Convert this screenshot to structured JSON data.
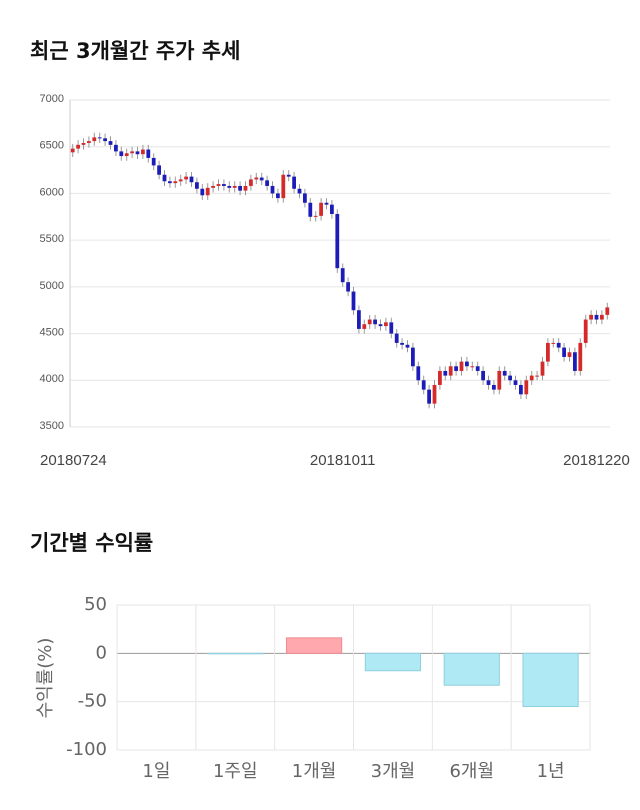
{
  "chart_data": [
    {
      "type": "candlestick",
      "title": "최근 3개월간 주가 추세",
      "up_color": "#d42a2a",
      "down_color": "#1c1cb8",
      "grid": true,
      "ylim": [
        3500,
        7000
      ],
      "yticks": [
        3500,
        4000,
        4500,
        5000,
        5500,
        6000,
        6500,
        7000
      ],
      "categories": [
        "20180724",
        null,
        null,
        null,
        null,
        null,
        null,
        null,
        null,
        null,
        null,
        null,
        null,
        null,
        null,
        null,
        null,
        null,
        null,
        null,
        null,
        null,
        null,
        null,
        null,
        null,
        null,
        null,
        null,
        null,
        null,
        null,
        null,
        null,
        null,
        null,
        null,
        null,
        null,
        null,
        null,
        null,
        null,
        null,
        null,
        null,
        null,
        null,
        null,
        null,
        "20181011",
        null,
        null,
        null,
        null,
        null,
        null,
        null,
        null,
        null,
        null,
        null,
        null,
        null,
        null,
        null,
        null,
        null,
        null,
        null,
        null,
        null,
        null,
        null,
        null,
        null,
        null,
        null,
        null,
        null,
        null,
        null,
        null,
        null,
        null,
        null,
        null,
        null,
        null,
        null,
        null,
        null,
        null,
        null,
        null,
        null,
        null,
        "20181220",
        null,
        null
      ],
      "open": [
        6440,
        6480,
        6520,
        6540,
        6560,
        6600,
        6590,
        6560,
        6520,
        6450,
        6400,
        6430,
        6450,
        6420,
        6470,
        6380,
        6300,
        6200,
        6130,
        6110,
        6130,
        6150,
        6180,
        6120,
        6050,
        5980,
        6060,
        6080,
        6100,
        6080,
        6060,
        6080,
        6030,
        6080,
        6150,
        6170,
        6140,
        6080,
        6000,
        5950,
        6200,
        6180,
        6050,
        6000,
        5900,
        5750,
        5760,
        5900,
        5880,
        5780,
        5200,
        5050,
        4950,
        4750,
        4550,
        4600,
        4650,
        4600,
        4580,
        4620,
        4500,
        4400,
        4380,
        4350,
        4150,
        4000,
        3900,
        3750,
        3950,
        4100,
        4050,
        4150,
        4100,
        4200,
        4150,
        4150,
        4100,
        4000,
        3950,
        3900,
        4100,
        4050,
        4000,
        3950,
        3850,
        4000,
        4050,
        4050,
        4200,
        4400,
        4400,
        4350,
        4250,
        4300,
        4100,
        4400,
        4650,
        4700,
        4650,
        4700
      ],
      "high": [
        6530,
        6570,
        6590,
        6610,
        6650,
        6650,
        6640,
        6610,
        6570,
        6500,
        6480,
        6500,
        6500,
        6520,
        6520,
        6430,
        6350,
        6250,
        6180,
        6180,
        6200,
        6230,
        6230,
        6170,
        6100,
        6110,
        6130,
        6150,
        6150,
        6130,
        6130,
        6130,
        6130,
        6200,
        6220,
        6220,
        6190,
        6130,
        6050,
        6250,
        6250,
        6230,
        6100,
        6050,
        5950,
        5810,
        5950,
        5950,
        5930,
        5830,
        5250,
        5100,
        5000,
        4800,
        4650,
        4700,
        4700,
        4650,
        4670,
        4670,
        4550,
        4450,
        4430,
        4400,
        4200,
        4050,
        3950,
        4000,
        4150,
        4150,
        4200,
        4200,
        4250,
        4250,
        4200,
        4200,
        4150,
        4050,
        4000,
        4150,
        4150,
        4100,
        4050,
        4000,
        4050,
        4100,
        4100,
        4250,
        4450,
        4450,
        4450,
        4400,
        4350,
        4350,
        4450,
        4700,
        4750,
        4750,
        4750,
        4830
      ],
      "low": [
        6390,
        6430,
        6470,
        6490,
        6510,
        6540,
        6510,
        6470,
        6400,
        6350,
        6350,
        6380,
        6370,
        6370,
        6330,
        6250,
        6150,
        6080,
        6060,
        6060,
        6080,
        6100,
        6070,
        6000,
        5930,
        5930,
        6010,
        6030,
        6030,
        6010,
        6010,
        5980,
        5980,
        6030,
        6100,
        6090,
        6030,
        5950,
        5900,
        5900,
        6130,
        6000,
        5950,
        5850,
        5700,
        5700,
        5710,
        5830,
        5730,
        5150,
        5000,
        4900,
        4700,
        4500,
        4500,
        4550,
        4550,
        4530,
        4530,
        4450,
        4350,
        4330,
        4300,
        4100,
        3950,
        3850,
        3700,
        3700,
        3900,
        4000,
        4000,
        4050,
        4050,
        4100,
        4100,
        4050,
        3950,
        3900,
        3850,
        3850,
        4000,
        3950,
        3900,
        3800,
        3800,
        3950,
        4000,
        4000,
        4150,
        4350,
        4300,
        4200,
        4200,
        4050,
        4050,
        4350,
        4600,
        4600,
        4600,
        4650
      ],
      "close": [
        6480,
        6520,
        6540,
        6560,
        6600,
        6590,
        6560,
        6520,
        6450,
        6400,
        6430,
        6450,
        6420,
        6470,
        6380,
        6300,
        6200,
        6130,
        6110,
        6130,
        6150,
        6180,
        6120,
        6050,
        5980,
        6060,
        6080,
        6100,
        6080,
        6060,
        6080,
        6030,
        6080,
        6150,
        6170,
        6140,
        6080,
        6000,
        5950,
        6200,
        6180,
        6050,
        6000,
        5900,
        5750,
        5760,
        5900,
        5880,
        5780,
        5200,
        5050,
        4950,
        4750,
        4550,
        4600,
        4650,
        4600,
        4580,
        4620,
        4500,
        4400,
        4380,
        4350,
        4150,
        4000,
        3900,
        3750,
        3950,
        4100,
        4050,
        4150,
        4100,
        4200,
        4150,
        4150,
        4100,
        4000,
        3950,
        3900,
        4100,
        4050,
        4000,
        3950,
        3850,
        4000,
        4050,
        4050,
        4200,
        4400,
        4400,
        4350,
        4250,
        4300,
        4100,
        4400,
        4650,
        4700,
        4650,
        4700,
        4780
      ]
    },
    {
      "type": "bar",
      "title": "기간별 수익률",
      "y_label": "수익률(%)",
      "categories": [
        "1일",
        "1주일",
        "1개월",
        "3개월",
        "6개월",
        "1년"
      ],
      "values": [
        0,
        -0.5,
        16,
        -18,
        -33,
        -55
      ],
      "positive_color": "#ffa9ae",
      "negative_color": "#aee9f4",
      "grid": true,
      "ylim": [
        -100,
        50
      ],
      "yticks": [
        -100,
        -50,
        0,
        50
      ]
    }
  ]
}
